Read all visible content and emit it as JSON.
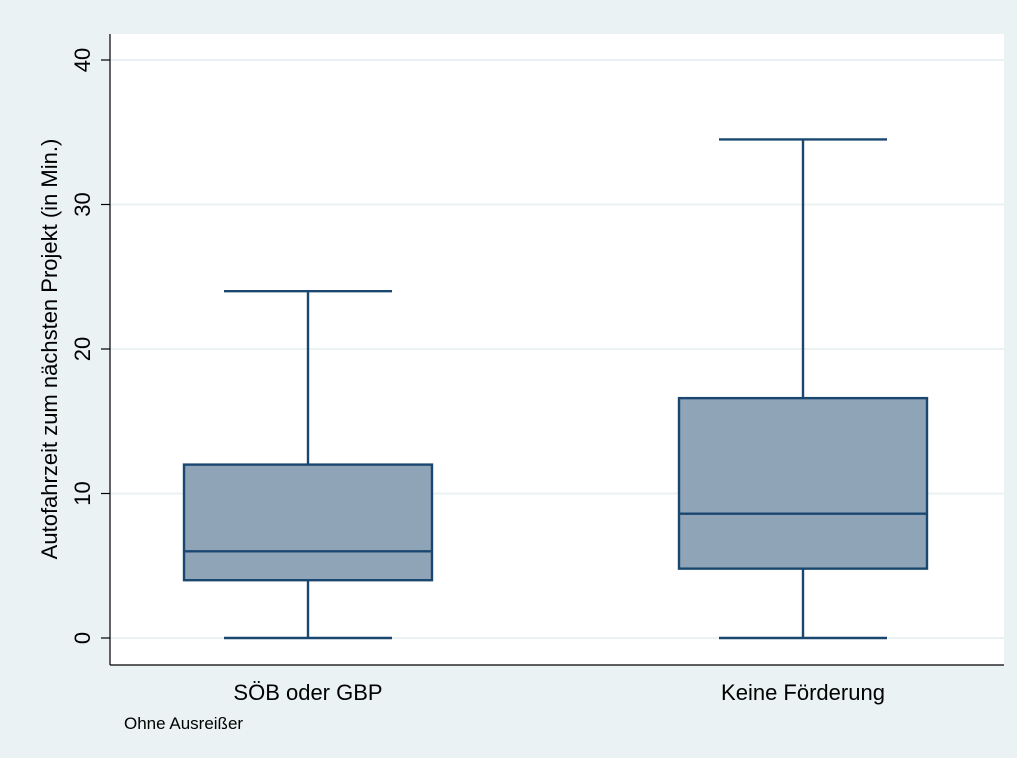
{
  "chart_data": {
    "type": "box",
    "ylabel": "Autofahrzeit zum nächsten Projekt (in Min.)",
    "ylim": [
      0,
      40
    ],
    "yticks": [
      0,
      10,
      20,
      30,
      40
    ],
    "grid": true,
    "note": "Ohne Ausreißer",
    "categories": [
      "SÖB oder GBP",
      "Keine Förderung"
    ],
    "boxes": [
      {
        "category": "SÖB oder GBP",
        "whisker_low": 0,
        "q1": 4,
        "median": 6,
        "q3": 12,
        "whisker_high": 24
      },
      {
        "category": "Keine Förderung",
        "whisker_low": 0,
        "q1": 4.8,
        "median": 8.6,
        "q3": 16.6,
        "whisker_high": 34.5
      }
    ]
  },
  "colors": {
    "outer_background": "#eaf2f3",
    "plot_background": "#ffffff",
    "gridline": "#eaf2f3",
    "box_fill": "#90a4b8",
    "box_stroke": "#1a476f",
    "axis": "#000000"
  }
}
